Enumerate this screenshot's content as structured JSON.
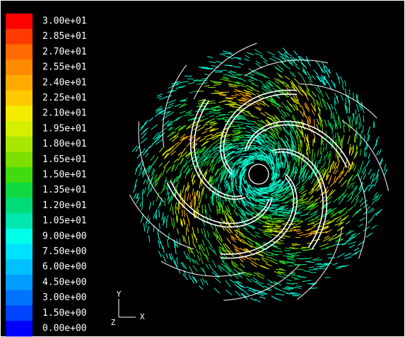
{
  "legend": {
    "levels": [
      {
        "label": "3.00e+01",
        "color": "#ff0000"
      },
      {
        "label": "2.85e+01",
        "color": "#ff3a00"
      },
      {
        "label": "2.70e+01",
        "color": "#ff6a00"
      },
      {
        "label": "2.55e+01",
        "color": "#ff8c00"
      },
      {
        "label": "2.40e+01",
        "color": "#ffaa00"
      },
      {
        "label": "2.25e+01",
        "color": "#ffc800"
      },
      {
        "label": "2.10e+01",
        "color": "#f4ec00"
      },
      {
        "label": "1.95e+01",
        "color": "#d4f000"
      },
      {
        "label": "1.80e+01",
        "color": "#a8e800"
      },
      {
        "label": "1.65e+01",
        "color": "#7ce000"
      },
      {
        "label": "1.50e+01",
        "color": "#40dc10"
      },
      {
        "label": "1.35e+01",
        "color": "#10d840"
      },
      {
        "label": "1.20e+01",
        "color": "#00dc78"
      },
      {
        "label": "1.05e+01",
        "color": "#00e8b0"
      },
      {
        "label": "9.00e+00",
        "color": "#00ffe8"
      },
      {
        "label": "7.50e+00",
        "color": "#00e0ff"
      },
      {
        "label": "6.00e+00",
        "color": "#00c0ff"
      },
      {
        "label": "4.50e+00",
        "color": "#009cff"
      },
      {
        "label": "3.00e+00",
        "color": "#0074ff"
      },
      {
        "label": "1.50e+00",
        "color": "#0044ff"
      },
      {
        "label": "0.00e+00",
        "color": "#0000ff"
      }
    ]
  },
  "axes": {
    "y": "Y",
    "x": "X",
    "z": "Z"
  }
}
